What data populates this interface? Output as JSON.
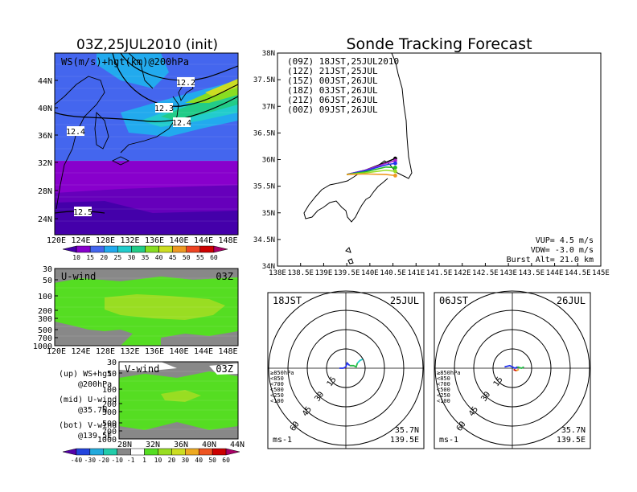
{
  "titles": {
    "left": "03Z,25JUL2010 (init)",
    "right": "Sonde Tracking Forecast"
  },
  "map_panel": {
    "label": "WS(m/s)+hgt(km)@200hPa",
    "contour_labels": [
      "12.2",
      "12.3",
      "12.4",
      "12.4",
      "12.5"
    ],
    "lat_ticks": [
      "44N",
      "40N",
      "36N",
      "32N",
      "28N",
      "24N"
    ],
    "lon_ticks": [
      "120E",
      "124E",
      "128E",
      "132E",
      "136E",
      "140E",
      "144E",
      "148E"
    ]
  },
  "ws_colorbar": {
    "labels": [
      "10",
      "15",
      "20",
      "25",
      "30",
      "35",
      "40",
      "45",
      "50",
      "55",
      "60"
    ],
    "colors": [
      "#4400aa",
      "#8800cc",
      "#4466ee",
      "#22aaee",
      "#22cccc",
      "#22cc88",
      "#88dd22",
      "#ccdd22",
      "#ee9922",
      "#ee4422",
      "#cc0000",
      "#aa0066"
    ]
  },
  "u_panel": {
    "label": "U-wind",
    "time": "03Z",
    "p_ticks": [
      "30",
      "50",
      "100",
      "200",
      "300",
      "500",
      "700",
      "1000"
    ],
    "lon_ticks": [
      "120E",
      "124E",
      "128E",
      "132E",
      "136E",
      "140E",
      "144E",
      "148E"
    ]
  },
  "v_panel": {
    "label": "V-wind",
    "time": "03Z",
    "p_ticks": [
      "30",
      "50",
      "100",
      "200",
      "300",
      "500",
      "700",
      "1000"
    ],
    "lat_ticks": [
      "28N",
      "32N",
      "36N",
      "40N",
      "44N"
    ]
  },
  "legend_notes": [
    {
      "head": "(up) WS+hgt",
      "sub": "@200hPa"
    },
    {
      "head": "(mid) U-wind",
      "sub": "@35.7N"
    },
    {
      "head": "(bot) V-wind",
      "sub": "@139.5E"
    }
  ],
  "uv_colorbar": {
    "labels": [
      "-40",
      "-30",
      "-20",
      "-10",
      "-1",
      "1",
      "10",
      "20",
      "30",
      "40",
      "50",
      "60"
    ],
    "colors": [
      "#5500aa",
      "#2244dd",
      "#22aadd",
      "#22ccaa",
      "#888888",
      "#ffffff",
      "#55dd22",
      "#99dd22",
      "#ccdd22",
      "#eeaa22",
      "#ee5522",
      "#cc0000",
      "#aa0066"
    ]
  },
  "chart_data": {
    "type": "line",
    "title": "Sonde Tracking Forecast",
    "xlim": [
      138,
      145
    ],
    "ylim": [
      34,
      38
    ],
    "x_ticks": [
      "138E",
      "138.5E",
      "139E",
      "139.5E",
      "140E",
      "140.5E",
      "141E",
      "141.5E",
      "142E",
      "142.5E",
      "143E",
      "143.5E",
      "144E",
      "144.5E",
      "145E"
    ],
    "y_ticks": [
      "34N",
      "34.5N",
      "35N",
      "35.5N",
      "35.5N",
      "36N",
      "36.5N",
      "37N",
      "37.5N",
      "38N"
    ],
    "series": [
      {
        "name": "(09Z)  18JST,25JUL2010",
        "color": "#000000",
        "points": [
          [
            139.5,
            35.72
          ],
          [
            139.9,
            35.8
          ],
          [
            140.35,
            35.95
          ],
          [
            140.55,
            36.02
          ]
        ]
      },
      {
        "name": "(12Z)  21JST,25JUL",
        "color": "#aa22cc",
        "points": [
          [
            139.5,
            35.72
          ],
          [
            139.9,
            35.8
          ],
          [
            140.35,
            35.93
          ],
          [
            140.55,
            35.98
          ]
        ]
      },
      {
        "name": "(15Z)  00JST,26JUL",
        "color": "#2233ee",
        "points": [
          [
            139.5,
            35.72
          ],
          [
            139.9,
            35.79
          ],
          [
            140.35,
            35.9
          ],
          [
            140.55,
            35.93
          ]
        ]
      },
      {
        "name": "(18Z)  03JST,26JUL",
        "color": "#22bb22",
        "points": [
          [
            139.5,
            35.72
          ],
          [
            139.9,
            35.77
          ],
          [
            140.35,
            35.86
          ],
          [
            140.55,
            35.85
          ]
        ]
      },
      {
        "name": "(21Z)  06JST,26JUL",
        "color": "#99dd22",
        "points": [
          [
            139.5,
            35.72
          ],
          [
            139.9,
            35.75
          ],
          [
            140.35,
            35.8
          ],
          [
            140.55,
            35.78
          ]
        ]
      },
      {
        "name": "(00Z)  09JST,26JUL",
        "color": "#ee9922",
        "points": [
          [
            139.5,
            35.72
          ],
          [
            139.9,
            35.73
          ],
          [
            140.35,
            35.72
          ],
          [
            140.55,
            35.7
          ]
        ]
      }
    ],
    "annotations": [
      "VUP=  4.5 m/s",
      "VDW= -3.0 m/s",
      "Burst Alt= 21.0 km"
    ]
  },
  "hodographs": [
    {
      "time": "18JST",
      "date": "25JUL",
      "unit": "ms-1",
      "loc1": "35.7N",
      "loc2": "139.5E",
      "ring_labels": [
        "15",
        "30",
        "45",
        "60"
      ],
      "legend": [
        {
          "text": "≥850hPa",
          "color": "#cc0000"
        },
        {
          "text": "<850",
          "color": "#ee9922"
        },
        {
          "text": "<700",
          "color": "#ccdd22"
        },
        {
          "text": "<500",
          "color": "#22bb44"
        },
        {
          "text": "<250",
          "color": "#22cccc"
        },
        {
          "text": "<100",
          "color": "#2233ee"
        }
      ],
      "segments": [
        {
          "color": "#cc0000",
          "points": [
            [
              -1,
              0
            ],
            [
              0,
              1
            ]
          ]
        },
        {
          "color": "#2233ee",
          "points": [
            [
              -5,
              0
            ],
            [
              -2,
              0
            ],
            [
              0,
              1
            ],
            [
              1,
              4
            ],
            [
              3,
              2
            ]
          ]
        },
        {
          "color": "#22bb44",
          "points": [
            [
              3,
              2
            ],
            [
              6,
              2
            ],
            [
              8,
              1
            ],
            [
              9,
              4
            ]
          ]
        },
        {
          "color": "#22cccc",
          "points": [
            [
              9,
              4
            ],
            [
              11,
              6
            ],
            [
              13,
              7
            ]
          ]
        }
      ]
    },
    {
      "time": "06JST",
      "date": "26JUL",
      "unit": "ms-1",
      "loc1": "35.7N",
      "loc2": "139.5E",
      "ring_labels": [
        "15",
        "30",
        "45",
        "60"
      ],
      "legend": [
        {
          "text": "≥850hPa",
          "color": "#cc0000"
        },
        {
          "text": "<850",
          "color": "#ee9922"
        },
        {
          "text": "<700",
          "color": "#ccdd22"
        },
        {
          "text": "<500",
          "color": "#22bb44"
        },
        {
          "text": "<250",
          "color": "#22cccc"
        },
        {
          "text": "<100",
          "color": "#2233ee"
        }
      ],
      "segments": [
        {
          "color": "#cc0000",
          "points": [
            [
              1,
              -1
            ],
            [
              3,
              -2
            ]
          ]
        },
        {
          "color": "#ee9922",
          "points": [
            [
              3,
              -2
            ],
            [
              5,
              -1
            ]
          ]
        },
        {
          "color": "#2233ee",
          "points": [
            [
              -6,
              1
            ],
            [
              -2,
              2
            ],
            [
              2,
              0
            ],
            [
              4,
              1
            ]
          ]
        },
        {
          "color": "#22bb44",
          "points": [
            [
              4,
              1
            ],
            [
              7,
              0
            ],
            [
              9,
              1
            ]
          ]
        }
      ]
    }
  ]
}
